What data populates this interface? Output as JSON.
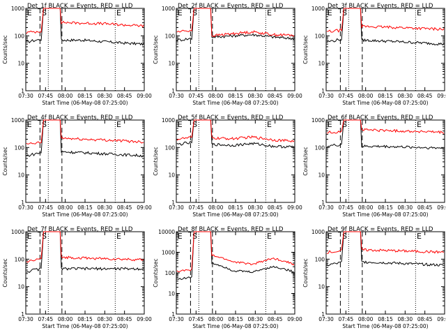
{
  "figure": {
    "xlabel": "Start Time (06-May-08 07:25:00)",
    "ylabel": "Counts/sec"
  },
  "chart_data": [
    {
      "type": "line",
      "title": "Det_1f BLACK = Events, RED = LLD",
      "marker_labels": [
        "E",
        "S",
        "E"
      ],
      "spike": true,
      "xlabel": "Start Time (06-May-08 07:25:00)",
      "ylabel": "Counts/sec",
      "x_ticks": [
        "07:30",
        "07:45",
        "08:00",
        "08:15",
        "08:30",
        "08:45",
        "09:00"
      ],
      "y_ticks": [
        "1",
        "10",
        "100",
        "1000"
      ],
      "yscale": "log",
      "ylim": [
        1,
        1000
      ],
      "series": [
        {
          "name": "Events",
          "color": "#000000",
          "pre": [
            60,
            75
          ],
          "post": [
            70,
            70,
            62,
            55,
            50
          ]
        },
        {
          "name": "LLD",
          "color": "#ff0000",
          "pre": [
            130,
            150
          ],
          "post": [
            310,
            290,
            280,
            250,
            230
          ]
        }
      ]
    },
    {
      "type": "line",
      "title": "Det_2f BLACK = Events, RED = LLD",
      "marker_labels": [
        "E",
        "S",
        "E"
      ],
      "spike": true,
      "xlabel": "Start Time (06-May-08 07:25:00)",
      "ylabel": "Counts/sec",
      "x_ticks": [
        "07:30",
        "07:45",
        "08:00",
        "08:15",
        "08:30",
        "08:45",
        "09:00"
      ],
      "y_ticks": [
        "1",
        "10",
        "100",
        "1000"
      ],
      "yscale": "log",
      "ylim": [
        1,
        1000
      ],
      "series": [
        {
          "name": "Events",
          "color": "#000000",
          "pre": [
            70,
            80
          ],
          "post": [
            90,
            100,
            110,
            90,
            80
          ]
        },
        {
          "name": "LLD",
          "color": "#ff0000",
          "pre": [
            140,
            160
          ],
          "post": [
            100,
            120,
            140,
            110,
            105
          ]
        }
      ]
    },
    {
      "type": "line",
      "title": "Det_3f BLACK = Events, RED = LLD",
      "marker_labels": [
        "E",
        "S",
        "E"
      ],
      "spike": true,
      "xlabel": "Start Time (06-May-08 07:25:00)",
      "ylabel": "Counts/sec",
      "x_ticks": [
        "07:30",
        "07:45",
        "08:00",
        "08:15",
        "08:30",
        "08:45",
        "09:00"
      ],
      "y_ticks": [
        "1",
        "10",
        "100",
        "1000"
      ],
      "yscale": "log",
      "ylim": [
        1,
        1000
      ],
      "series": [
        {
          "name": "Events",
          "color": "#000000",
          "pre": [
            60,
            75
          ],
          "post": [
            70,
            65,
            60,
            55,
            50
          ]
        },
        {
          "name": "LLD",
          "color": "#ff0000",
          "pre": [
            140,
            160
          ],
          "post": [
            220,
            210,
            200,
            185,
            175
          ]
        }
      ]
    },
    {
      "type": "line",
      "title": "Det_4f BLACK = Events, RED = LLD",
      "marker_labels": [
        "E",
        "S",
        "E"
      ],
      "spike": true,
      "xlabel": "Start Time (06-May-08 07:25:00)",
      "ylabel": "Counts/sec",
      "x_ticks": [
        "07:30",
        "07:45",
        "08:00",
        "08:15",
        "08:30",
        "08:45",
        "09:00"
      ],
      "y_ticks": [
        "1",
        "10",
        "100",
        "1000"
      ],
      "yscale": "log",
      "ylim": [
        1,
        1000
      ],
      "series": [
        {
          "name": "Events",
          "color": "#000000",
          "pre": [
            50,
            65
          ],
          "post": [
            70,
            65,
            60,
            55,
            50
          ]
        },
        {
          "name": "LLD",
          "color": "#ff0000",
          "pre": [
            130,
            150
          ],
          "post": [
            220,
            200,
            190,
            175,
            160
          ]
        }
      ]
    },
    {
      "type": "line",
      "title": "Det_5f BLACK = Events, RED = LLD",
      "marker_labels": [
        "E",
        "S",
        "E"
      ],
      "spike": true,
      "xlabel": "Start Time (06-May-08 07:25:00)",
      "ylabel": "Counts/sec",
      "x_ticks": [
        "07:30",
        "07:45",
        "08:00",
        "08:15",
        "08:30",
        "08:45",
        "09:00"
      ],
      "y_ticks": [
        "1",
        "10",
        "100",
        "1000"
      ],
      "yscale": "log",
      "ylim": [
        1,
        1000
      ],
      "series": [
        {
          "name": "Events",
          "color": "#000000",
          "pre": [
            130,
            150
          ],
          "post": [
            130,
            120,
            140,
            110,
            105
          ]
        },
        {
          "name": "LLD",
          "color": "#ff0000",
          "pre": [
            200,
            230
          ],
          "post": [
            220,
            210,
            240,
            190,
            170
          ]
        }
      ]
    },
    {
      "type": "line",
      "title": "Det_6f BLACK = Events, RED = LLD",
      "marker_labels": [
        "E",
        "S",
        "E"
      ],
      "spike": true,
      "xlabel": "Start Time (06-May-08 07:25:00)",
      "ylabel": "Counts/sec",
      "x_ticks": [
        "07:30",
        "07:45",
        "08:00",
        "08:15",
        "08:30",
        "08:45",
        "09:00"
      ],
      "y_ticks": [
        "1",
        "10",
        "100",
        "1000"
      ],
      "yscale": "log",
      "ylim": [
        1,
        1000
      ],
      "series": [
        {
          "name": "Events",
          "color": "#000000",
          "pre": [
            110,
            130
          ],
          "post": [
            110,
            110,
            105,
            100,
            95
          ]
        },
        {
          "name": "LLD",
          "color": "#ff0000",
          "pre": [
            350,
            380
          ],
          "post": [
            450,
            420,
            400,
            380,
            350
          ]
        }
      ]
    },
    {
      "type": "line",
      "title": "Det_7f BLACK = Events, RED = LLD",
      "marker_labels": [
        "E",
        "S",
        "E"
      ],
      "spike": true,
      "xlabel": "Start Time (06-May-08 07:25:00)",
      "ylabel": "Counts/sec",
      "x_ticks": [
        "07:30",
        "07:45",
        "08:00",
        "08:15",
        "08:30",
        "08:45",
        "09:00"
      ],
      "y_ticks": [
        "1",
        "10",
        "100",
        "1000"
      ],
      "yscale": "log",
      "ylim": [
        1,
        1000
      ],
      "series": [
        {
          "name": "Events",
          "color": "#000000",
          "pre": [
            35,
            45
          ],
          "post": [
            45,
            45,
            45,
            45,
            45
          ]
        },
        {
          "name": "LLD",
          "color": "#ff0000",
          "pre": [
            80,
            100
          ],
          "post": [
            120,
            110,
            105,
            100,
            95
          ]
        }
      ]
    },
    {
      "type": "line",
      "title": "Det_8f BLACK = Events, RED = LLD",
      "marker_labels": [
        "E",
        "S",
        "E"
      ],
      "spike": true,
      "xlabel": "Start Time (06-May-08 07:25:00)",
      "ylabel": "Counts/sec",
      "x_ticks": [
        "07:30",
        "07:45",
        "08:00",
        "08:15",
        "08:30",
        "08:45",
        "09:00"
      ],
      "y_ticks": [
        "1",
        "10",
        "100",
        "1000",
        "10000"
      ],
      "yscale": "log",
      "ylim": [
        1,
        10000
      ],
      "series": [
        {
          "name": "Events",
          "color": "#000000",
          "pre": [
            50,
            60
          ],
          "post": [
            300,
            130,
            110,
            200,
            110
          ]
        },
        {
          "name": "LLD",
          "color": "#ff0000",
          "pre": [
            120,
            140
          ],
          "post": [
            700,
            350,
            260,
            500,
            260
          ]
        }
      ]
    },
    {
      "type": "line",
      "title": "Det_9f BLACK = Events, RED = LLD",
      "marker_labels": [
        "E",
        "S",
        "E"
      ],
      "spike": true,
      "xlabel": "Start Time (06-May-08 07:25:00)",
      "ylabel": "Counts/sec",
      "x_ticks": [
        "07:30",
        "07:45",
        "08:00",
        "08:15",
        "08:30",
        "08:45",
        "09:00"
      ],
      "y_ticks": [
        "1",
        "10",
        "100",
        "1000"
      ],
      "yscale": "log",
      "ylim": [
        1,
        1000
      ],
      "series": [
        {
          "name": "Events",
          "color": "#000000",
          "pre": [
            60,
            75
          ],
          "post": [
            80,
            75,
            70,
            65,
            60
          ]
        },
        {
          "name": "LLD",
          "color": "#ff0000",
          "pre": [
            180,
            200
          ],
          "post": [
            220,
            210,
            200,
            190,
            180
          ]
        }
      ]
    }
  ]
}
